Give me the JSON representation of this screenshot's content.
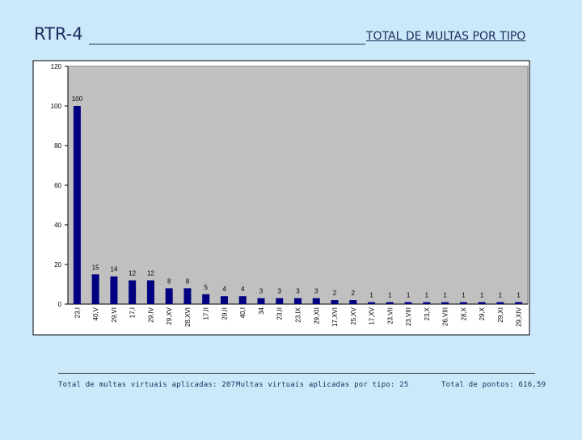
{
  "slide": {
    "title": "RTR-4",
    "chart_heading": "TOTAL DE MULTAS POR TIPO"
  },
  "footer": {
    "total_multas": "Total de multas virtuais aplicadas: 207",
    "multas_por_tipo": "Multas virtuais aplicadas por tipo: 25",
    "total_pontos": "Total de pontos: 616,59"
  },
  "colors": {
    "background": "#cce9fb",
    "plot_area": "#c0c0c0",
    "bar": "#000080"
  },
  "chart_data": {
    "type": "bar",
    "title": "TOTAL DE MULTAS POR TIPO",
    "xlabel": "",
    "ylabel": "",
    "ylim": [
      0,
      120
    ],
    "yticks": [
      0,
      20,
      40,
      60,
      80,
      100,
      120
    ],
    "grid": false,
    "categories": [
      "23,I",
      "40,V",
      "29,VI",
      "17,I",
      "29,IV",
      "29,XV",
      "28,XVI",
      "17,II",
      "29,II",
      "40,I",
      "34",
      "23,II",
      "23,IX",
      "29,XII",
      "17,XVI",
      "25,XV",
      "17,XV",
      "23,VII",
      "23,VIII",
      "23,X",
      "26,VIII",
      "28,X",
      "29,X",
      "29,XI",
      "29,XIV"
    ],
    "values": [
      100,
      15,
      14,
      12,
      12,
      8,
      8,
      5,
      4,
      4,
      3,
      3,
      3,
      3,
      2,
      2,
      1,
      1,
      1,
      1,
      1,
      1,
      1,
      1,
      1
    ]
  }
}
